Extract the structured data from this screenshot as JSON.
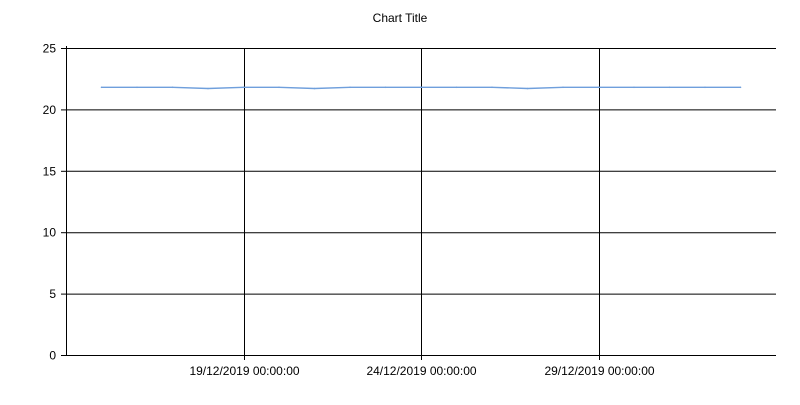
{
  "chart_data": {
    "type": "line",
    "title": "Chart Title",
    "xlabel": "",
    "ylabel": "",
    "x_axis_kind": "date",
    "xlim": [
      "2019-12-14",
      "2020-01-03"
    ],
    "ylim": [
      0,
      25
    ],
    "y_ticks": [
      0,
      5,
      10,
      15,
      20,
      25
    ],
    "x_ticks": [
      "2019-12-19",
      "2019-12-24",
      "2019-12-29"
    ],
    "x_tick_labels": [
      "19/12/2019 00:00:00",
      "24/12/2019 00:00:00",
      "29/12/2019 00:00:00"
    ],
    "grid": true,
    "legend": "none",
    "series": [
      {
        "color": "#6f9fdc",
        "x": [
          "2019-12-15",
          "2019-12-16",
          "2019-12-17",
          "2019-12-18",
          "2019-12-19",
          "2019-12-20",
          "2019-12-21",
          "2019-12-22",
          "2019-12-23",
          "2019-12-24",
          "2019-12-25",
          "2019-12-26",
          "2019-12-27",
          "2019-12-28",
          "2019-12-29",
          "2019-12-30",
          "2019-12-31",
          "2020-01-01",
          "2020-01-02"
        ],
        "y": [
          21.8,
          21.8,
          21.8,
          21.7,
          21.8,
          21.8,
          21.7,
          21.8,
          21.8,
          21.8,
          21.8,
          21.8,
          21.7,
          21.8,
          21.8,
          21.8,
          21.8,
          21.8,
          21.8
        ]
      }
    ]
  }
}
